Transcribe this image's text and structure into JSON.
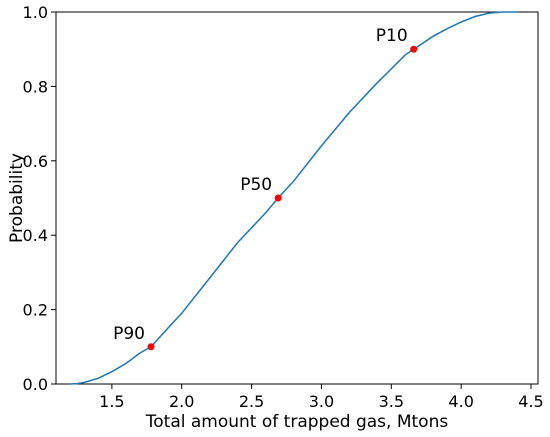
{
  "chart_data": {
    "type": "line",
    "title": "",
    "xlabel": "Total amount of trapped gas, Mtons",
    "ylabel": "Probability",
    "xlim": [
      1.1,
      4.55
    ],
    "ylim": [
      0.0,
      1.0
    ],
    "x_ticks": [
      1.5,
      2.0,
      2.5,
      3.0,
      3.5,
      4.0,
      4.5
    ],
    "x_tick_labels": [
      "1.5",
      "2.0",
      "2.5",
      "3.0",
      "3.5",
      "4.0",
      "4.5"
    ],
    "y_ticks": [
      0.0,
      0.2,
      0.4,
      0.6,
      0.8,
      1.0
    ],
    "y_tick_labels": [
      "0.0",
      "0.2",
      "0.4",
      "0.6",
      "0.8",
      "1.0"
    ],
    "grid": false,
    "series": [
      {
        "color": "#1f77b4",
        "x": [
          1.2,
          1.25,
          1.3,
          1.4,
          1.5,
          1.6,
          1.7,
          1.78,
          1.9,
          2.0,
          2.2,
          2.4,
          2.6,
          2.69,
          2.8,
          3.0,
          3.2,
          3.4,
          3.6,
          3.66,
          3.8,
          3.9,
          4.0,
          4.1,
          4.2,
          4.3,
          4.4
        ],
        "y": [
          0.0,
          0.001,
          0.004,
          0.015,
          0.033,
          0.055,
          0.083,
          0.1,
          0.15,
          0.19,
          0.285,
          0.38,
          0.46,
          0.5,
          0.545,
          0.64,
          0.73,
          0.81,
          0.885,
          0.9,
          0.935,
          0.955,
          0.973,
          0.988,
          0.997,
          1.0,
          1.0
        ]
      }
    ],
    "markers": [
      {
        "label": "P90",
        "x": 1.78,
        "y": 0.1,
        "color": "#ff0000"
      },
      {
        "label": "P50",
        "x": 2.69,
        "y": 0.5,
        "color": "#ff0000"
      },
      {
        "label": "P10",
        "x": 3.66,
        "y": 0.9,
        "color": "#ff0000"
      }
    ]
  }
}
